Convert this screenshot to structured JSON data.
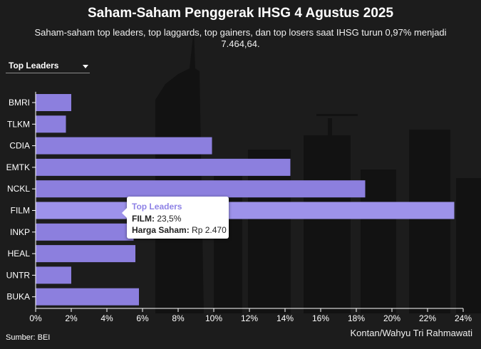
{
  "header": {
    "title": "Saham-Saham Penggerak IHSG 4 Agustus 2025",
    "subtitle": "Saham-saham top leaders, top laggards, top gainers, dan top losers saat IHSG turun 0,97% menjadi 7.464,64."
  },
  "selector": {
    "value": "Top Leaders",
    "icon": "chevron-down-icon"
  },
  "tooltip": {
    "title": "Top Leaders",
    "line1_label": "FILM:",
    "line1_value": "23,5%",
    "line2_label": "Harga Saham:",
    "line2_value": "Rp 2.470"
  },
  "footer": {
    "source": "Sumber: BEI",
    "credit": "Kontan/Wahyu Tri Rahmawati"
  },
  "colors": {
    "bar": "#8c7fde",
    "bar_highlight": "#9d92ea",
    "background": "#1c1c1c",
    "skyline": "#111111",
    "tooltip_title": "#8e82e6"
  },
  "chart_data": {
    "type": "bar",
    "orientation": "horizontal",
    "categories": [
      "BMRI",
      "TLKM",
      "CDIA",
      "EMTK",
      "NCKL",
      "FILM",
      "INKP",
      "HEAL",
      "UNTR",
      "BUKA"
    ],
    "values": [
      2.0,
      1.7,
      9.9,
      14.3,
      18.5,
      23.5,
      5.5,
      5.6,
      2.0,
      5.8
    ],
    "xlim": [
      0,
      24
    ],
    "ticks": [
      "0%",
      "2%",
      "4%",
      "6%",
      "8%",
      "10%",
      "12%",
      "14%",
      "16%",
      "18%",
      "20%",
      "22%",
      "24%"
    ],
    "tick_values": [
      0,
      2,
      4,
      6,
      8,
      10,
      12,
      14,
      16,
      18,
      20,
      22,
      24
    ],
    "highlighted": "FILM",
    "grid": false
  }
}
